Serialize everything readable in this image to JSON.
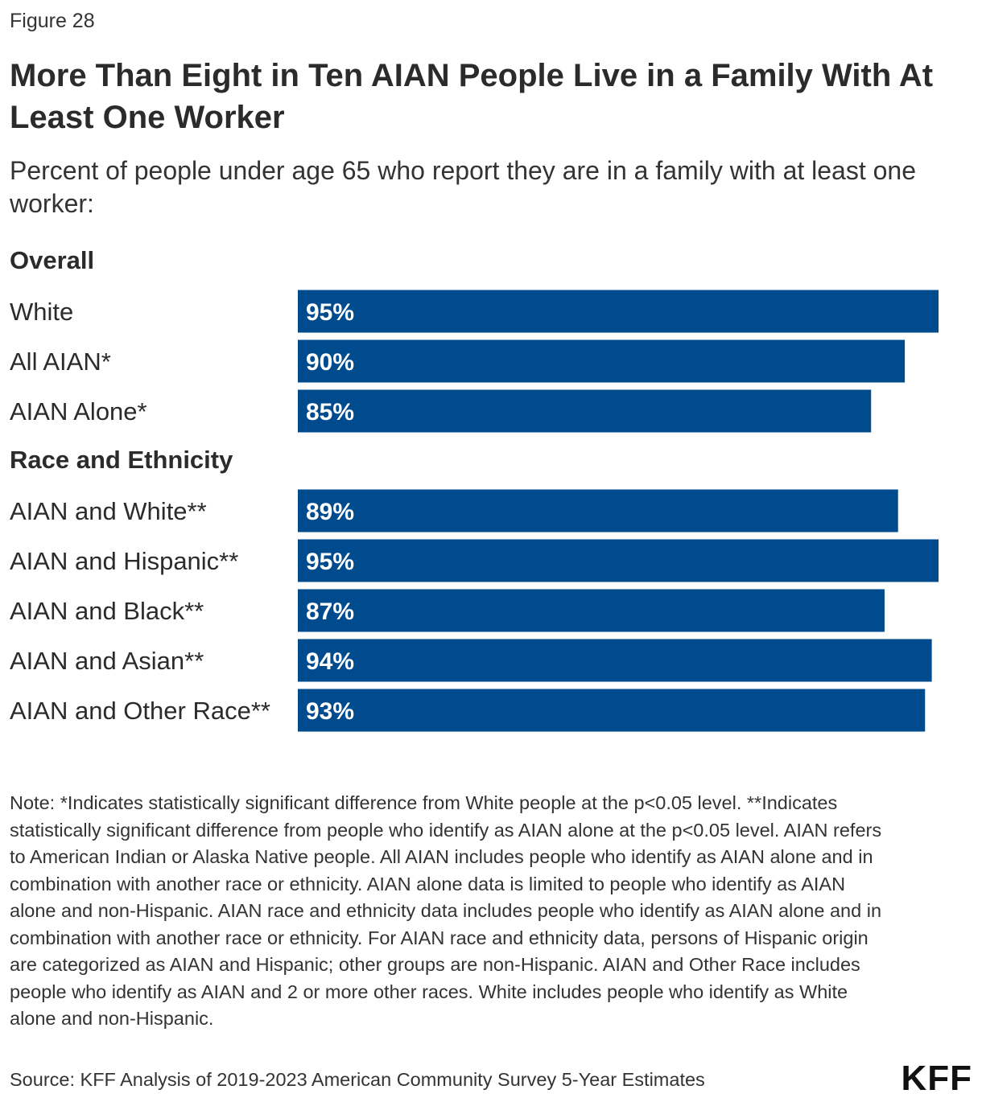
{
  "figure_label": "Figure 28",
  "logo_text": "KFF",
  "note": "Note: *Indicates statistically significant difference from White people at the p<0.05 level. **Indicates statistically significant difference from people who identify as AIAN alone at the p<0.05 level. AIAN refers to American Indian or Alaska Native people. All AIAN includes people who identify as AIAN alone and in combination with another race or ethnicity. AIAN alone data is limited to people who identify as AIAN alone and non-Hispanic. AIAN race and ethnicity data includes people who identify as AIAN alone and in combination with another race or ethnicity. For AIAN race and ethnicity data, persons of Hispanic origin are categorized as AIAN and Hispanic; other groups are non-Hispanic. AIAN and Other Race includes people who identify as AIAN and 2 or more other races. White includes people who identify as White alone and non-Hispanic.",
  "source": "Source: KFF Analysis of 2019-2023 American Community Survey 5-Year Estimates",
  "chart_data": {
    "type": "bar",
    "orientation": "horizontal",
    "title": "More Than Eight in Ten AIAN People Live in a  Family With At Least One Worker",
    "subtitle": "Percent of people under age 65 who report they are in a family with at least one worker:",
    "bar_color": "#004b8d",
    "label_color": "#ffffff",
    "value_format": "{v}%",
    "xlim": [
      0,
      95
    ],
    "grid": false,
    "legend": "none",
    "groups": [
      {
        "name": "Overall",
        "categories": [
          "White",
          "All AIAN*",
          "AIAN Alone*"
        ],
        "values": [
          95,
          90,
          85
        ]
      },
      {
        "name": "Race and Ethnicity",
        "categories": [
          "AIAN and White**",
          "AIAN and Hispanic**",
          "AIAN and Black**",
          "AIAN and Asian**",
          "AIAN and Other Race**"
        ],
        "values": [
          89,
          95,
          87,
          94,
          93
        ]
      }
    ]
  }
}
